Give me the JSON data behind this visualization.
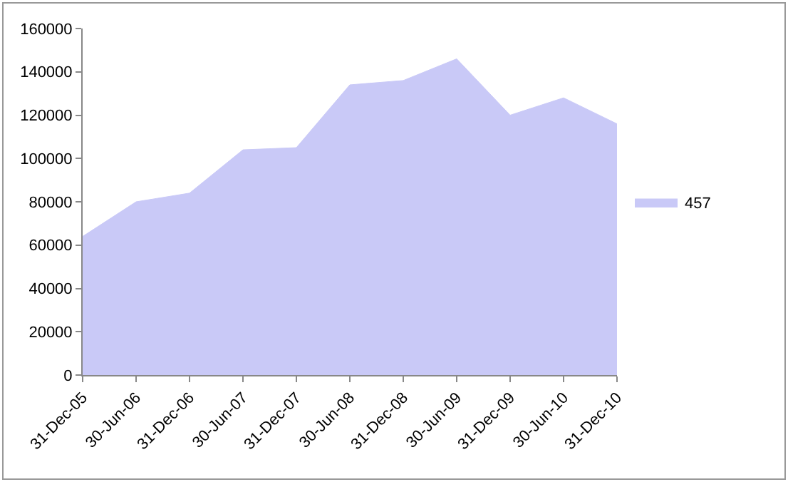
{
  "chart_data": {
    "type": "area",
    "categories": [
      "31-Dec-05",
      "30-Jun-06",
      "31-Dec-06",
      "30-Jun-07",
      "31-Dec-07",
      "30-Jun-08",
      "31-Dec-08",
      "30-Jun-09",
      "31-Dec-09",
      "30-Jun-10",
      "31-Dec-10"
    ],
    "series": [
      {
        "name": "457",
        "color": "#c9c9f7",
        "values": [
          64000,
          80000,
          84000,
          104000,
          105000,
          134000,
          136000,
          146000,
          120000,
          128000,
          116000
        ]
      }
    ],
    "ylim": [
      0,
      160000
    ],
    "yticks": [
      0,
      20000,
      40000,
      60000,
      80000,
      100000,
      120000,
      140000,
      160000
    ],
    "legend": "right"
  }
}
